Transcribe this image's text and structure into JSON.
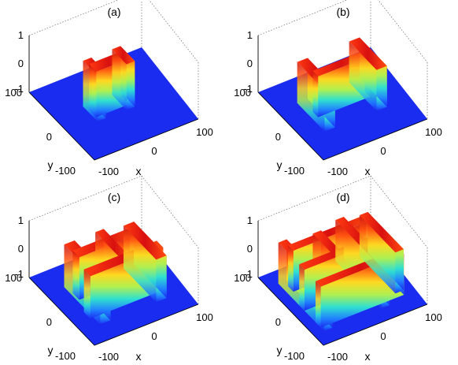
{
  "figure": {
    "panels": [
      {
        "id": "a",
        "caption": "(a)"
      },
      {
        "id": "b",
        "caption": "(b)"
      },
      {
        "id": "c",
        "caption": "(c)"
      },
      {
        "id": "d",
        "caption": "(d)"
      }
    ],
    "z_ticks": [
      "1",
      "0",
      "-1"
    ],
    "y_ticks": [
      "100",
      "0",
      "-100"
    ],
    "x_ticks": [
      "-100",
      "0",
      "100"
    ],
    "xlabel": "x",
    "ylabel": "y",
    "colors": {
      "floor": "#1a2cf0",
      "low": "#2060ff",
      "mid": "#30e0d0",
      "high_mid": "#ffe020",
      "top": "#d01010"
    }
  },
  "chart_data": [
    {
      "type": "surface",
      "panel": "a",
      "xlim": [
        -100,
        100
      ],
      "ylim": [
        -100,
        100
      ],
      "zlim": [
        -1,
        1
      ],
      "pattern": "single dumbbell-shaped plateau along x, centered at origin",
      "floor_value": -1,
      "plateau_value": 1
    },
    {
      "type": "surface",
      "panel": "b",
      "xlim": [
        -100,
        100
      ],
      "ylim": [
        -100,
        100
      ],
      "zlim": [
        -1,
        1
      ],
      "pattern": "H-shaped plateau with four end lobes",
      "floor_value": -1,
      "plateau_value": 1
    },
    {
      "type": "surface",
      "panel": "c",
      "xlim": [
        -100,
        100
      ],
      "ylim": [
        -100,
        100
      ],
      "zlim": [
        -1,
        1
      ],
      "pattern": "branched network of plateaus",
      "floor_value": -1,
      "plateau_value": 1
    },
    {
      "type": "surface",
      "panel": "d",
      "xlim": [
        -100,
        100
      ],
      "ylim": [
        -100,
        100
      ],
      "zlim": [
        -1,
        1
      ],
      "pattern": "dense labyrinthine network of plateaus",
      "floor_value": -1,
      "plateau_value": 1
    }
  ]
}
